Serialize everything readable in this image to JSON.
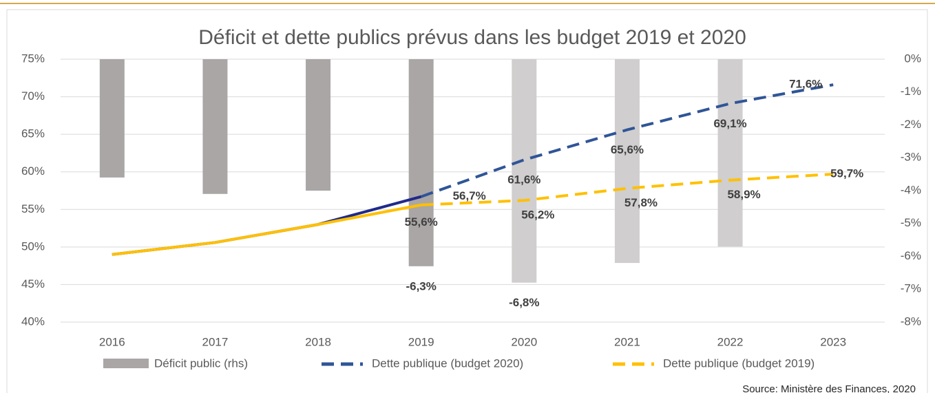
{
  "chart_data": {
    "type": "bar_line",
    "title": "Déficit et dette publics prévus dans les budget 2019 et 2020",
    "categories": [
      "2016",
      "2017",
      "2018",
      "2019",
      "2020",
      "2021",
      "2022",
      "2023"
    ],
    "series": [
      {
        "name": "Déficit public (rhs)",
        "type": "bar",
        "axis": "y2",
        "colors": [
          "#aaa6a6",
          "#aaa6a6",
          "#aaa6a6",
          "#aaa6a6",
          "#d0cece",
          "#d0cece",
          "#d0cece",
          "#d0cece"
        ],
        "values": [
          -3.6,
          -4.1,
          -4.0,
          -6.3,
          -6.8,
          -6.2,
          -5.7,
          null
        ],
        "value_labels": [
          null,
          null,
          null,
          "-6,3%",
          "-6,8%",
          null,
          null,
          null
        ]
      },
      {
        "name": "Dette publique (budget 2020)",
        "type": "line",
        "color": "#2f5597",
        "solid_color": "#1f2a8a",
        "values": [
          49.0,
          50.6,
          53.0,
          56.7,
          61.6,
          65.6,
          69.1,
          71.6
        ],
        "value_labels": [
          null,
          null,
          null,
          "56,7%",
          "61,6%",
          "65,6%",
          "69,1%",
          "71,6%"
        ]
      },
      {
        "name": "Dette publique (budget 2019)",
        "type": "line",
        "color": "#ffc000",
        "solid_color": "#ffc000",
        "values": [
          49.0,
          50.6,
          53.0,
          55.6,
          56.2,
          57.8,
          58.9,
          59.7
        ],
        "value_labels": [
          null,
          null,
          null,
          "55,6%",
          "56,2%",
          "57,8%",
          "58,9%",
          "59,7%"
        ]
      }
    ],
    "dashed_from": 3,
    "ylim": [
      40,
      75
    ],
    "yticks": [
      {
        "value": 40,
        "label": "40%"
      },
      {
        "value": 45,
        "label": "45%"
      },
      {
        "value": 50,
        "label": "50%"
      },
      {
        "value": 55,
        "label": "55%"
      },
      {
        "value": 60,
        "label": "60%"
      },
      {
        "value": 65,
        "label": "65%"
      },
      {
        "value": 70,
        "label": "70%"
      },
      {
        "value": 75,
        "label": "75%"
      }
    ],
    "y2lim": [
      -8,
      0
    ],
    "y2ticks": [
      {
        "value": -8,
        "label": "-8%"
      },
      {
        "value": -7,
        "label": "-7%"
      },
      {
        "value": -6,
        "label": "-6%"
      },
      {
        "value": -5,
        "label": "-5%"
      },
      {
        "value": -4,
        "label": "-4%"
      },
      {
        "value": -3,
        "label": "-3%"
      },
      {
        "value": -2,
        "label": "-2%"
      },
      {
        "value": -1,
        "label": "-1%"
      },
      {
        "value": 0,
        "label": "0%"
      }
    ],
    "grid": true,
    "source": "Source: Ministère des Finances, 2020"
  }
}
